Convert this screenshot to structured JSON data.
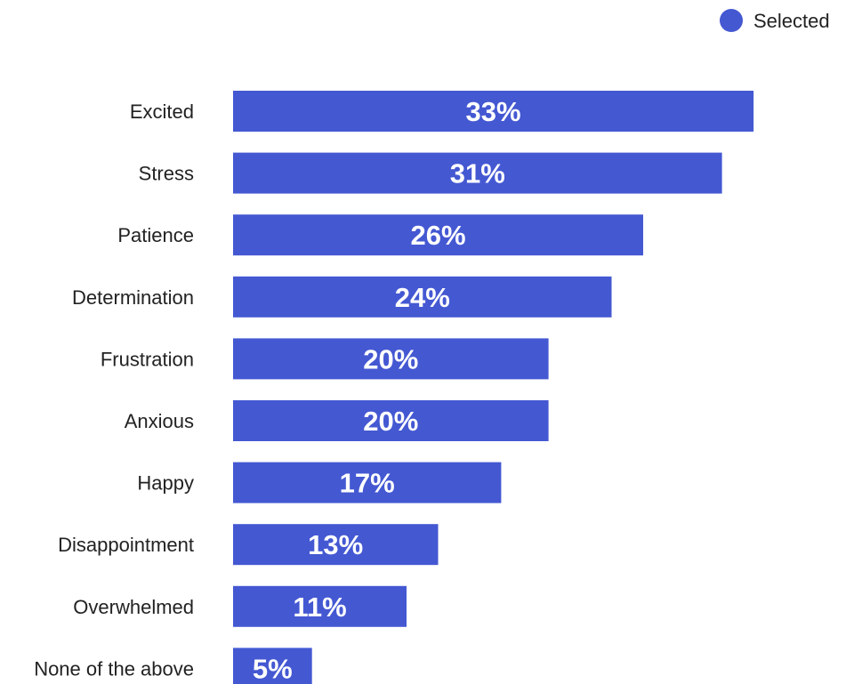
{
  "chart_data": {
    "type": "bar",
    "orientation": "horizontal",
    "title": "",
    "xlabel": "",
    "ylabel": "",
    "xlim": [
      0,
      33
    ],
    "grid": false,
    "legend_position": "top-right",
    "categories": [
      "Excited",
      "Stress",
      "Patience",
      "Determination",
      "Frustration",
      "Anxious",
      "Happy",
      "Disappointment",
      "Overwhelmed",
      "None of the above"
    ],
    "series": [
      {
        "name": "Selected",
        "color": "#4458d2",
        "values": [
          33,
          31,
          26,
          24,
          20,
          20,
          17,
          13,
          11,
          5
        ],
        "labels": [
          "33%",
          "31%",
          "26%",
          "24%",
          "20%",
          "20%",
          "17%",
          "13%",
          "11%",
          "5%"
        ]
      }
    ]
  }
}
